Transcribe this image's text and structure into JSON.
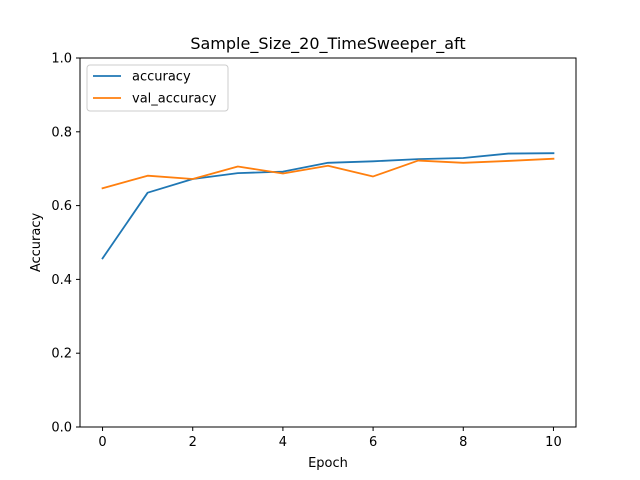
{
  "chart_data": {
    "type": "line",
    "title": "Sample_Size_20_TimeSweeper_aft",
    "xlabel": "Epoch",
    "ylabel": "Accuracy",
    "xlim": [
      -0.5,
      10.5
    ],
    "ylim": [
      0.0,
      1.0
    ],
    "xticks": [
      "0",
      "2",
      "4",
      "6",
      "8",
      "10"
    ],
    "yticks": [
      "0.0",
      "0.2",
      "0.4",
      "0.6",
      "0.8",
      "1.0"
    ],
    "grid": false,
    "legend_position": "top-left",
    "x": [
      0,
      1,
      2,
      3,
      4,
      5,
      6,
      7,
      8,
      9,
      10
    ],
    "series": [
      {
        "name": "accuracy",
        "color": "#1f77b4",
        "values": [
          0.457,
          0.635,
          0.672,
          0.688,
          0.692,
          0.716,
          0.72,
          0.726,
          0.729,
          0.741,
          0.742
        ]
      },
      {
        "name": "val_accuracy",
        "color": "#ff7f0e",
        "values": [
          0.647,
          0.681,
          0.672,
          0.706,
          0.687,
          0.708,
          0.679,
          0.722,
          0.716,
          0.721,
          0.727
        ]
      }
    ]
  }
}
